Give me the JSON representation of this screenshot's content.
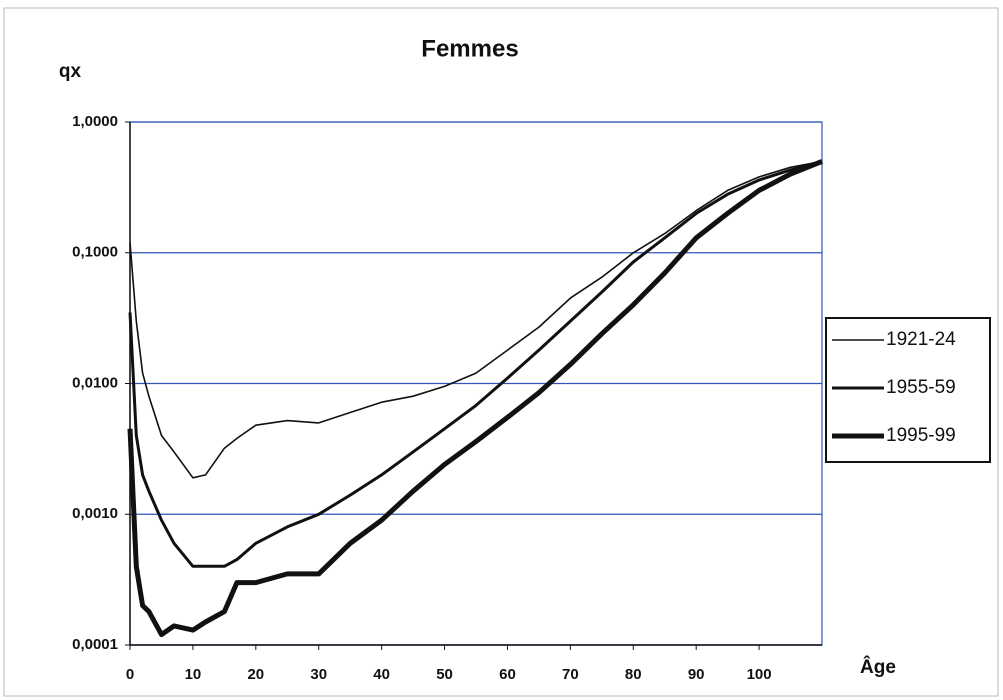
{
  "chart_data": {
    "type": "line",
    "title": "Femmes",
    "y_label": "qx",
    "x_label": "Âge",
    "log_y": true,
    "grid": true,
    "grid_color": "#3355bb",
    "x": [
      0,
      1,
      2,
      3,
      5,
      7,
      10,
      12,
      15,
      17,
      20,
      25,
      30,
      35,
      40,
      45,
      50,
      55,
      60,
      65,
      70,
      75,
      80,
      85,
      90,
      95,
      100,
      105,
      110
    ],
    "series": [
      {
        "name": "1921-24",
        "color": "#111111",
        "line_width": 1.6,
        "values": [
          0.12,
          0.03,
          0.012,
          0.008,
          0.004,
          0.003,
          0.0019,
          0.002,
          0.0032,
          0.0038,
          0.0048,
          0.0052,
          0.005,
          0.006,
          0.0072,
          0.008,
          0.0095,
          0.012,
          0.018,
          0.027,
          0.045,
          0.065,
          0.1,
          0.14,
          0.21,
          0.3,
          0.38,
          0.45,
          0.5
        ]
      },
      {
        "name": "1955-59",
        "color": "#111111",
        "line_width": 3,
        "values": [
          0.035,
          0.004,
          0.002,
          0.0015,
          0.0009,
          0.0006,
          0.0004,
          0.0004,
          0.0004,
          0.00045,
          0.0006,
          0.0008,
          0.001,
          0.0014,
          0.002,
          0.003,
          0.0045,
          0.0068,
          0.011,
          0.018,
          0.03,
          0.05,
          0.085,
          0.13,
          0.2,
          0.28,
          0.36,
          0.43,
          0.5
        ]
      },
      {
        "name": "1995-99",
        "color": "#111111",
        "line_width": 5,
        "values": [
          0.0045,
          0.0004,
          0.0002,
          0.00018,
          0.00012,
          0.00014,
          0.00013,
          0.00015,
          0.00018,
          0.0003,
          0.0003,
          0.00035,
          0.00035,
          0.0006,
          0.0009,
          0.0015,
          0.0024,
          0.0036,
          0.0055,
          0.0085,
          0.014,
          0.024,
          0.04,
          0.07,
          0.13,
          0.2,
          0.3,
          0.4,
          0.5
        ]
      }
    ],
    "xlim": [
      0,
      110
    ],
    "xticks": [
      0,
      10,
      20,
      30,
      40,
      50,
      60,
      70,
      80,
      90,
      100
    ],
    "ylim": [
      0.0001,
      1
    ],
    "yticks": [
      {
        "value": 0.0001,
        "label": "0,0001"
      },
      {
        "value": 0.001,
        "label": "0,0010"
      },
      {
        "value": 0.01,
        "label": "0,0100"
      },
      {
        "value": 0.1,
        "label": "0,1000"
      },
      {
        "value": 1,
        "label": "1,0000"
      }
    ],
    "legend": "right"
  }
}
